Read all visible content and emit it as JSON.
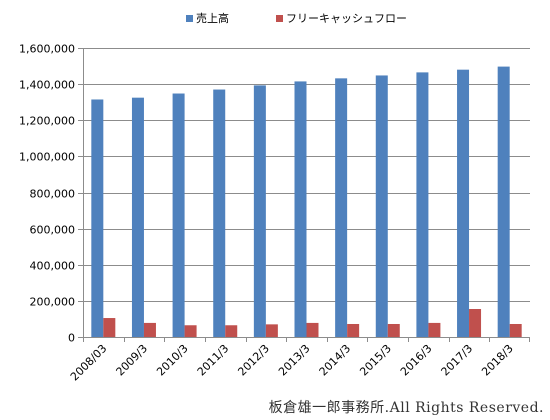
{
  "chart_data": {
    "type": "bar",
    "title": "",
    "xlabel": "",
    "ylabel": "",
    "categories": [
      "2008/03",
      "2009/3",
      "2010/3",
      "2011/3",
      "2012/3",
      "2013/3",
      "2014/3",
      "2015/3",
      "2016/3",
      "2017/3",
      "2018/3"
    ],
    "series": [
      {
        "name": "売上高",
        "color": "#4f81bd",
        "values": [
          1315000,
          1325000,
          1348000,
          1370000,
          1393000,
          1415000,
          1432000,
          1448000,
          1465000,
          1480000,
          1497000
        ]
      },
      {
        "name": "フリーキャッシュフロー",
        "color": "#c0504d",
        "values": [
          105000,
          78000,
          65000,
          65000,
          70000,
          78000,
          72000,
          72000,
          78000,
          155000,
          72000
        ]
      }
    ],
    "ylim": [
      0,
      1600000
    ],
    "yticks": [
      "0",
      "200,000",
      "400,000",
      "600,000",
      "800,000",
      "1,000,000",
      "1,200,000",
      "1,400,000",
      "1,600,000"
    ],
    "grid": true,
    "legend_position": "top"
  },
  "footer": {
    "copyright": "板倉雄一郎事務所.All Rights Reserved."
  }
}
